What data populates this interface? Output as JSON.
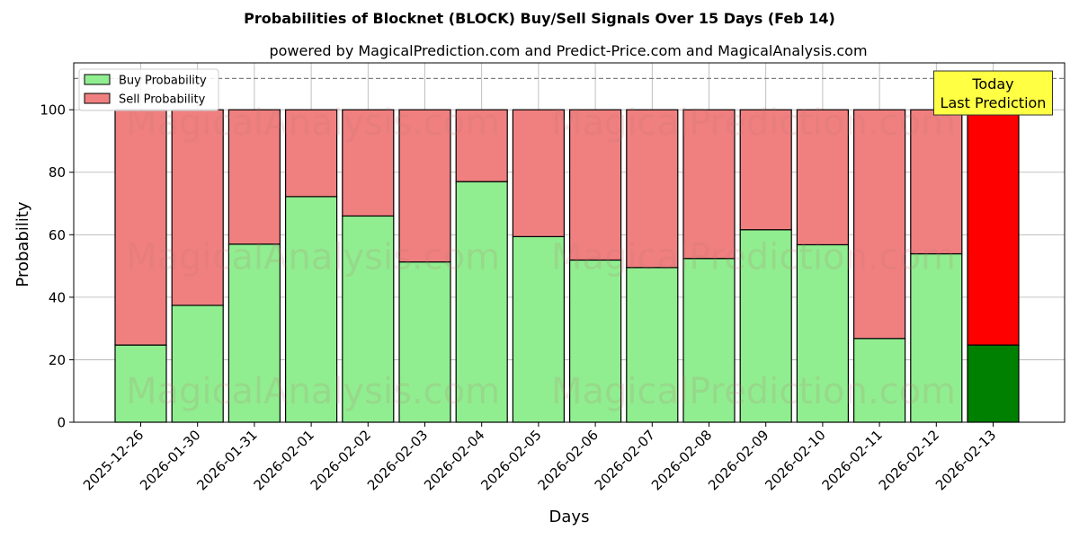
{
  "chart_data": {
    "type": "bar",
    "stacked": true,
    "title": "Probabilities of Blocknet (BLOCK) Buy/Sell Signals Over 15 Days (Feb 14)",
    "subtitle": "powered by MagicalPrediction.com and Predict-Price.com and MagicalAnalysis.com",
    "xlabel": "Days",
    "ylabel": "Probability",
    "ylim": [
      0,
      115
    ],
    "yticks": [
      0,
      20,
      40,
      60,
      80,
      100
    ],
    "reference_line": 110,
    "grid": true,
    "legend_position": "top-left",
    "categories": [
      "2025-12-26",
      "2026-01-30",
      "2026-01-31",
      "2026-02-01",
      "2026-02-02",
      "2026-02-03",
      "2026-02-04",
      "2026-02-05",
      "2026-02-06",
      "2026-02-07",
      "2026-02-08",
      "2026-02-09",
      "2026-02-10",
      "2026-02-11",
      "2026-02-12",
      "2026-02-13"
    ],
    "series": [
      {
        "name": "Buy Probability",
        "color": "#90ee90",
        "highlight_color": "#008000",
        "values": [
          24.7,
          37.4,
          57.0,
          72.2,
          66.0,
          51.3,
          77.0,
          59.4,
          51.9,
          49.5,
          52.4,
          61.6,
          56.8,
          26.8,
          53.9,
          24.7
        ]
      },
      {
        "name": "Sell Probability",
        "color": "#f08080",
        "highlight_color": "#ff0000",
        "values": [
          75.3,
          62.6,
          43.0,
          27.8,
          34.0,
          48.7,
          23.0,
          40.6,
          48.1,
          50.5,
          47.6,
          38.4,
          43.2,
          73.2,
          46.1,
          75.3
        ]
      }
    ],
    "annotation": {
      "lines": [
        "Today",
        "Last Prediction"
      ],
      "category_index": 15,
      "background": "#ffff44"
    },
    "watermarks": [
      "MagicalAnalysis.com",
      "MagicalPrediction.com"
    ]
  }
}
